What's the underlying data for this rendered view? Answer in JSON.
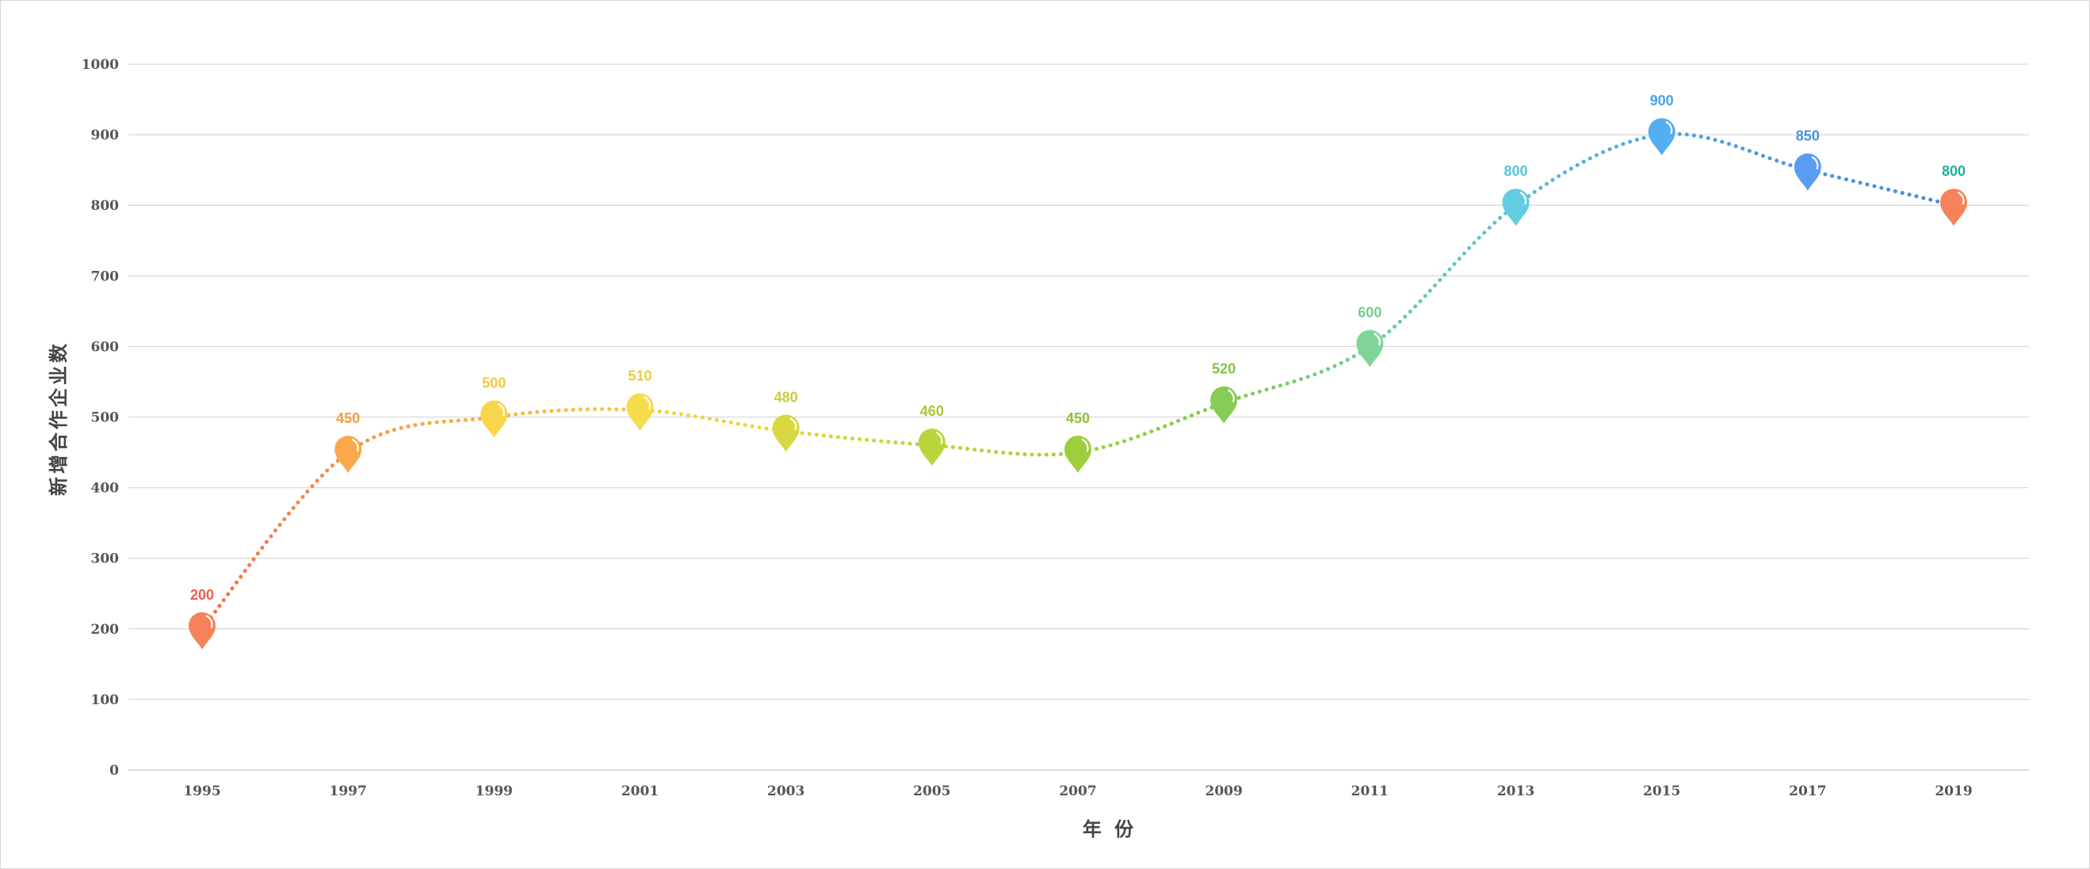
{
  "chart_data": {
    "type": "line",
    "title": "",
    "xlabel": "年 份",
    "ylabel": "新增合作企业数",
    "x": [
      "1995",
      "1997",
      "1999",
      "2001",
      "2003",
      "2005",
      "2007",
      "2009",
      "2011",
      "2013",
      "2015",
      "2017",
      "2019"
    ],
    "series": [
      {
        "values": [
          200,
          450,
          500,
          510,
          480,
          460,
          450,
          520,
          600,
          800,
          900,
          850,
          800
        ]
      }
    ],
    "ylim": [
      0,
      1000
    ],
    "yticks": [
      0,
      100,
      200,
      300,
      400,
      500,
      600,
      700,
      800,
      900,
      1000
    ],
    "grid": true,
    "legend": "none",
    "point_colors": [
      "#f5825a",
      "#f9a84c",
      "#f9d54c",
      "#f5dc4a",
      "#d8d844",
      "#b8d63c",
      "#9ccf3c",
      "#86cc55",
      "#7fd49a",
      "#62cde0",
      "#55aef0",
      "#5a9cf2",
      "#f5825a"
    ],
    "label_colors": [
      "#f05a4a",
      "#f59a3c",
      "#f5c83c",
      "#f0c83c",
      "#c8cc38",
      "#a8c832",
      "#8cc432",
      "#7cc448",
      "#74cc90",
      "#55c4d8",
      "#4aa4e8",
      "#4a90e8",
      "#1ab09a"
    ],
    "curve_gradient": [
      "#f56a4a",
      "#f5b03c",
      "#f0d83c",
      "#b8d630",
      "#86cc44",
      "#62c8c8",
      "#4aa0e8",
      "#4a8ae8"
    ]
  }
}
